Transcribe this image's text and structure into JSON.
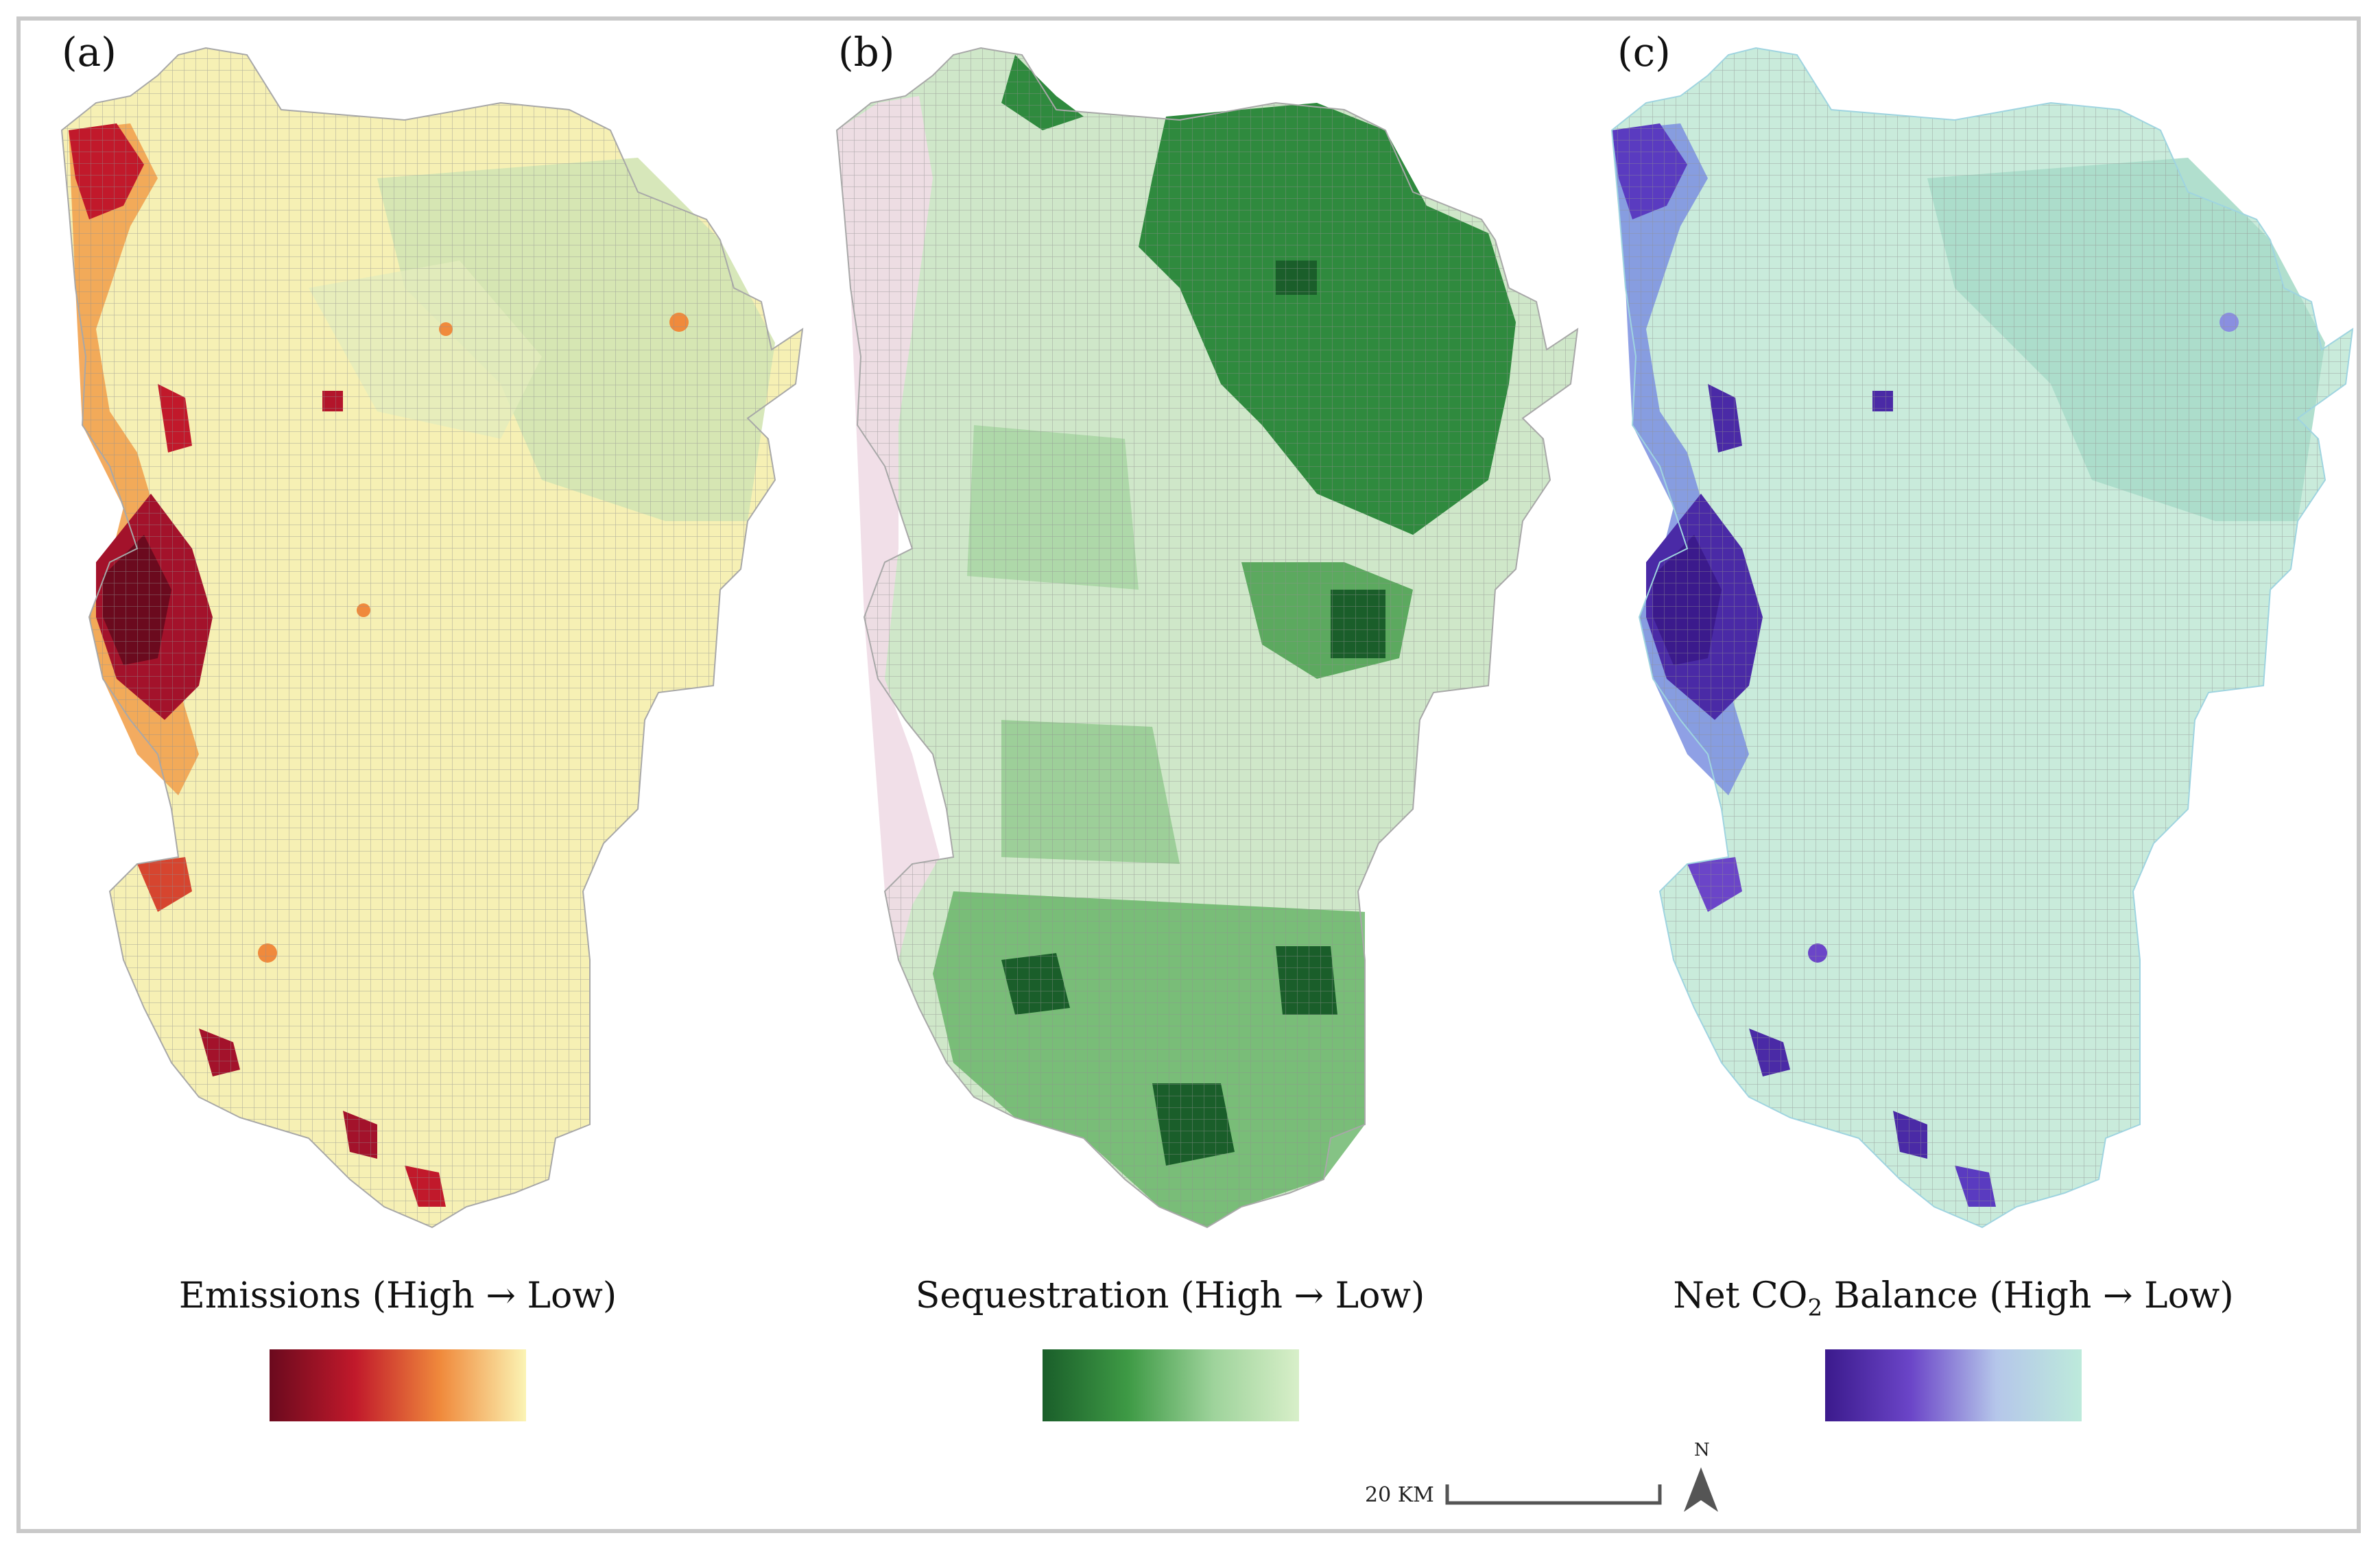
{
  "panels": [
    {
      "label": "(a)",
      "legend_title": "Emissions (High → Low)",
      "ramp": [
        "#6b0a1e",
        "#c1192b",
        "#f08a3c",
        "#fbf4b4"
      ]
    },
    {
      "label": "(b)",
      "legend_title": "Sequestration (High → Low)",
      "ramp": [
        "#1a5e2a",
        "#3e9a45",
        "#9ed39b",
        "#d8efc9"
      ]
    },
    {
      "label": "(c)",
      "legend_title_parts": {
        "prefix": "Net CO",
        "subscript": "2",
        "suffix": " Balance (High → Low)"
      },
      "ramp": [
        "#3b1a8c",
        "#6b45c8",
        "#b5c6ea",
        "#bdeadb"
      ]
    }
  ],
  "scale_bar": {
    "label": "20 KM"
  },
  "north_arrow": {
    "label": "N"
  },
  "colors": {
    "frame": "#c9c9c9",
    "grid_line": "#8f8f8f"
  }
}
